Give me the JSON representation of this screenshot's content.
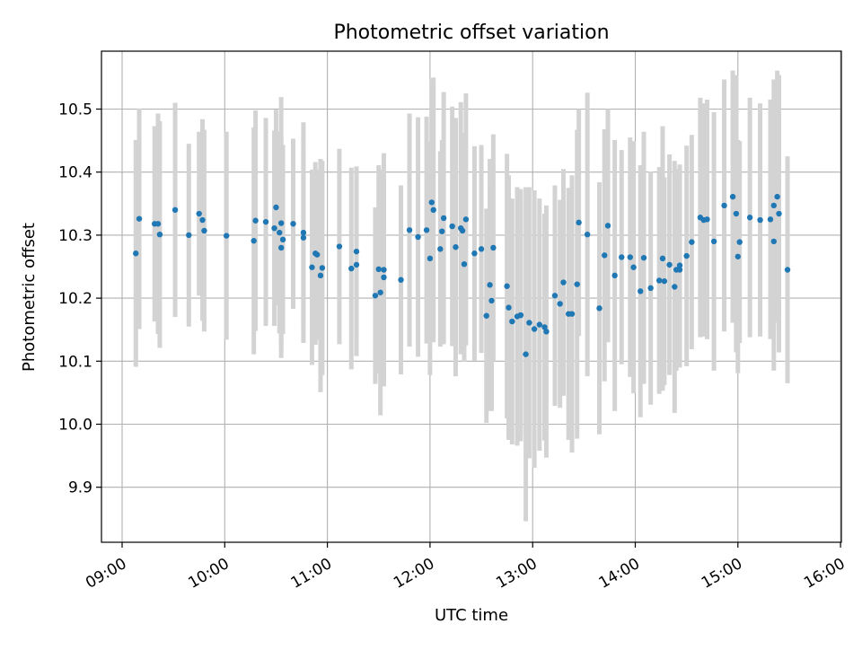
{
  "chart_data": {
    "type": "scatter",
    "title": "Photometric offset variation",
    "xlabel": "UTC time",
    "ylabel": "Photometric offset",
    "x_axis_type": "time",
    "x_tick_labels": [
      "09:00",
      "10:00",
      "11:00",
      "12:00",
      "13:00",
      "14:00",
      "15:00",
      "16:00"
    ],
    "y_tick_labels": [
      "9.9",
      "10.0",
      "10.1",
      "10.2",
      "10.3",
      "10.4",
      "10.5"
    ],
    "xlim": [
      "08:50",
      "16:00"
    ],
    "ylim": [
      9.81,
      10.59
    ],
    "grid": true,
    "legend": "none",
    "colors": {
      "points": "#1f77b4",
      "error_bars": "#d3d3d3",
      "grid": "#b0b0b0",
      "axes": "#000000"
    },
    "series": [
      {
        "marker": "point",
        "x": [
          "09:08",
          "09:10",
          "09:19",
          "09:21",
          "09:22",
          "09:31",
          "09:39",
          "09:45",
          "09:47",
          "09:48",
          "10:01",
          "10:17",
          "10:18",
          "10:24",
          "10:29",
          "10:30",
          "10:32",
          "10:33",
          "10:33",
          "10:34",
          "10:40",
          "10:46",
          "10:46",
          "10:51",
          "10:53",
          "10:54",
          "10:56",
          "10:57",
          "11:07",
          "11:14",
          "11:17",
          "11:17",
          "11:28",
          "11:30",
          "11:31",
          "11:33",
          "11:33",
          "11:43",
          "11:48",
          "11:53",
          "11:58",
          "12:00",
          "12:01",
          "12:02",
          "12:06",
          "12:07",
          "12:08",
          "12:13",
          "12:15",
          "12:18",
          "12:19",
          "12:20",
          "12:21",
          "12:26",
          "12:30",
          "12:33",
          "12:35",
          "12:36",
          "12:37",
          "12:45",
          "12:46",
          "12:48",
          "12:51",
          "12:53",
          "12:53",
          "12:56",
          "12:58",
          "13:01",
          "13:04",
          "13:07",
          "13:08",
          "13:13",
          "13:16",
          "13:18",
          "13:21",
          "13:23",
          "13:26",
          "13:27",
          "13:32",
          "13:39",
          "13:42",
          "13:44",
          "13:48",
          "13:52",
          "13:57",
          "13:59",
          "14:03",
          "14:05",
          "14:09",
          "14:14",
          "14:16",
          "14:17",
          "14:20",
          "14:23",
          "14:24",
          "14:26",
          "14:26",
          "14:30",
          "14:33",
          "14:38",
          "14:40",
          "14:42",
          "14:46",
          "14:52",
          "14:57",
          "14:59",
          "15:00",
          "15:01",
          "15:07",
          "15:13",
          "15:19",
          "15:21",
          "15:21",
          "15:23",
          "15:24",
          "15:29"
        ],
        "y": [
          10.271,
          10.326,
          10.318,
          10.318,
          10.301,
          10.34,
          10.3,
          10.334,
          10.324,
          10.307,
          10.299,
          10.291,
          10.323,
          10.321,
          10.311,
          10.344,
          10.304,
          10.319,
          10.28,
          10.293,
          10.318,
          10.304,
          10.296,
          10.249,
          10.271,
          10.269,
          10.236,
          10.248,
          10.282,
          10.247,
          10.253,
          10.274,
          10.204,
          10.246,
          10.209,
          10.245,
          10.233,
          10.229,
          10.308,
          10.297,
          10.308,
          10.263,
          10.352,
          10.34,
          10.278,
          10.306,
          10.327,
          10.314,
          10.281,
          10.311,
          10.307,
          10.254,
          10.325,
          10.271,
          10.278,
          10.172,
          10.221,
          10.196,
          10.28,
          10.219,
          10.185,
          10.163,
          10.171,
          10.173,
          10.173,
          10.111,
          10.161,
          10.151,
          10.158,
          10.154,
          10.147,
          10.204,
          10.191,
          10.225,
          10.175,
          10.175,
          10.222,
          10.32,
          10.301,
          10.184,
          10.268,
          10.315,
          10.236,
          10.265,
          10.265,
          10.249,
          10.211,
          10.264,
          10.216,
          10.228,
          10.263,
          10.227,
          10.253,
          10.218,
          10.245,
          10.245,
          10.252,
          10.267,
          10.289,
          10.328,
          10.324,
          10.325,
          10.29,
          10.347,
          10.361,
          10.334,
          10.266,
          10.289,
          10.328,
          10.324,
          10.325,
          10.29,
          10.347,
          10.361,
          10.334,
          10.245
        ],
        "err": [
          0.18,
          0.175,
          0.155,
          0.175,
          0.18,
          0.17,
          0.145,
          0.13,
          0.16,
          0.16,
          0.165,
          0.18,
          0.175,
          0.165,
          0.155,
          0.155,
          0.16,
          0.2,
          0.175,
          0.15,
          0.135,
          0.175,
          0.14,
          0.155,
          0.145,
          0.135,
          0.185,
          0.17,
          0.155,
          0.16,
          0.145,
          0.135,
          0.14,
          0.165,
          0.195,
          0.185,
          0.16,
          0.15,
          0.185,
          0.19,
          0.18,
          0.185,
          0.195,
          0.21,
          0.155,
          0.145,
          0.2,
          0.19,
          0.205,
          0.2,
          0.155,
          0.155,
          0.2,
          0.17,
          0.165,
          0.17,
          0.2,
          0.175,
          0.18,
          0.21,
          0.21,
          0.195,
          0.205,
          0.19,
          0.2,
          0.265,
          0.215,
          0.22,
          0.2,
          0.18,
          0.2,
          0.175,
          0.165,
          0.18,
          0.2,
          0.22,
          0.245,
          0.18,
          0.225,
          0.2,
          0.2,
          0.185,
          0.215,
          0.17,
          0.19,
          0.2,
          0.2,
          0.2,
          0.185,
          0.18,
          0.21,
          0.165,
          0.175,
          0.2,
          0.16,
          0.155,
          0.16,
          0.175,
          0.17,
          0.19,
          0.185,
          0.19,
          0.205,
          0.2,
          0.2,
          0.22,
          0.185,
          0.16,
          0.19,
          0.185,
          0.19,
          0.205,
          0.2,
          0.2,
          0.22,
          0.18
        ]
      }
    ]
  }
}
